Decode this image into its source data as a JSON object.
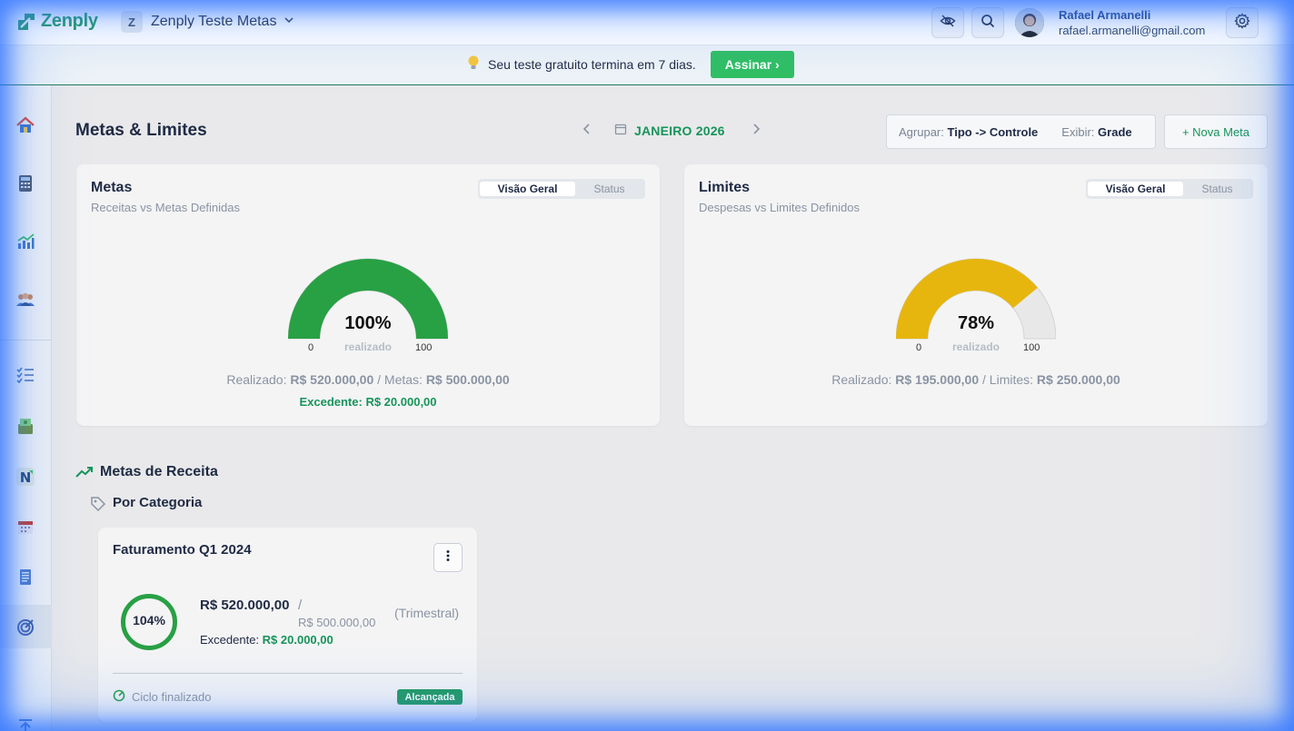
{
  "app": {
    "logo_text": "Zenply",
    "workspace_initial": "Z",
    "workspace_name": "Zenply Teste Metas"
  },
  "user": {
    "name": "Rafael Armanelli",
    "email": "rafael.armanelli@gmail.com"
  },
  "banner": {
    "text": "Seu teste gratuito termina em 7 dias.",
    "button": "Assinar ›"
  },
  "page": {
    "title": "Metas & Limites",
    "month": "JANEIRO 2026",
    "group_label": "Agrupar:",
    "group_value": "Tipo -> Controle",
    "view_label": "Exibir:",
    "view_value": "Grade",
    "new_button": "+ Nova Meta"
  },
  "metas": {
    "title": "Metas",
    "subtitle": "Receitas vs Metas Definidas",
    "tab_on": "Visão Geral",
    "tab_off": "Status",
    "percent": "100%",
    "percent_value": 1.0,
    "realizado": "realizado",
    "min": "0",
    "max": "100",
    "summary_realizado_label": "Realizado:",
    "summary_realizado_value": "R$ 520.000,00",
    "summary_meta_label": "/ Metas:",
    "summary_meta_value": "R$ 500.000,00",
    "excedente_label": "Excedente:",
    "excedente_value": "R$ 20.000,00"
  },
  "limites": {
    "title": "Limites",
    "subtitle": "Despesas vs Limites Definidos",
    "tab_on": "Visão Geral",
    "tab_off": "Status",
    "percent": "78%",
    "percent_value": 0.78,
    "realizado": "realizado",
    "min": "0",
    "max": "100",
    "summary_realizado_label": "Realizado:",
    "summary_realizado_value": "R$ 195.000,00",
    "summary_limite_label": "/ Limites:",
    "summary_limite_value": "R$ 250.000,00"
  },
  "section": {
    "title": "Metas de Receita",
    "subtitle": "Por Categoria"
  },
  "goal": {
    "title": "Faturamento Q1 2024",
    "percent": "104%",
    "amount": "R$ 520.000,00",
    "slash": "/",
    "target": "R$ 500.000,00",
    "period": "(Trimestral)",
    "excedente_label": "Excedente:",
    "excedente_value": "R$ 20.000,00",
    "footer": "Ciclo finalizado",
    "badge": "Alcançada"
  },
  "colors": {
    "brand": "#1e9a5a",
    "gauge_full": "#28a044",
    "gauge_partial": "#e6b60e",
    "gauge_track": "#e8e8e8",
    "glow": "#2f6bff"
  }
}
